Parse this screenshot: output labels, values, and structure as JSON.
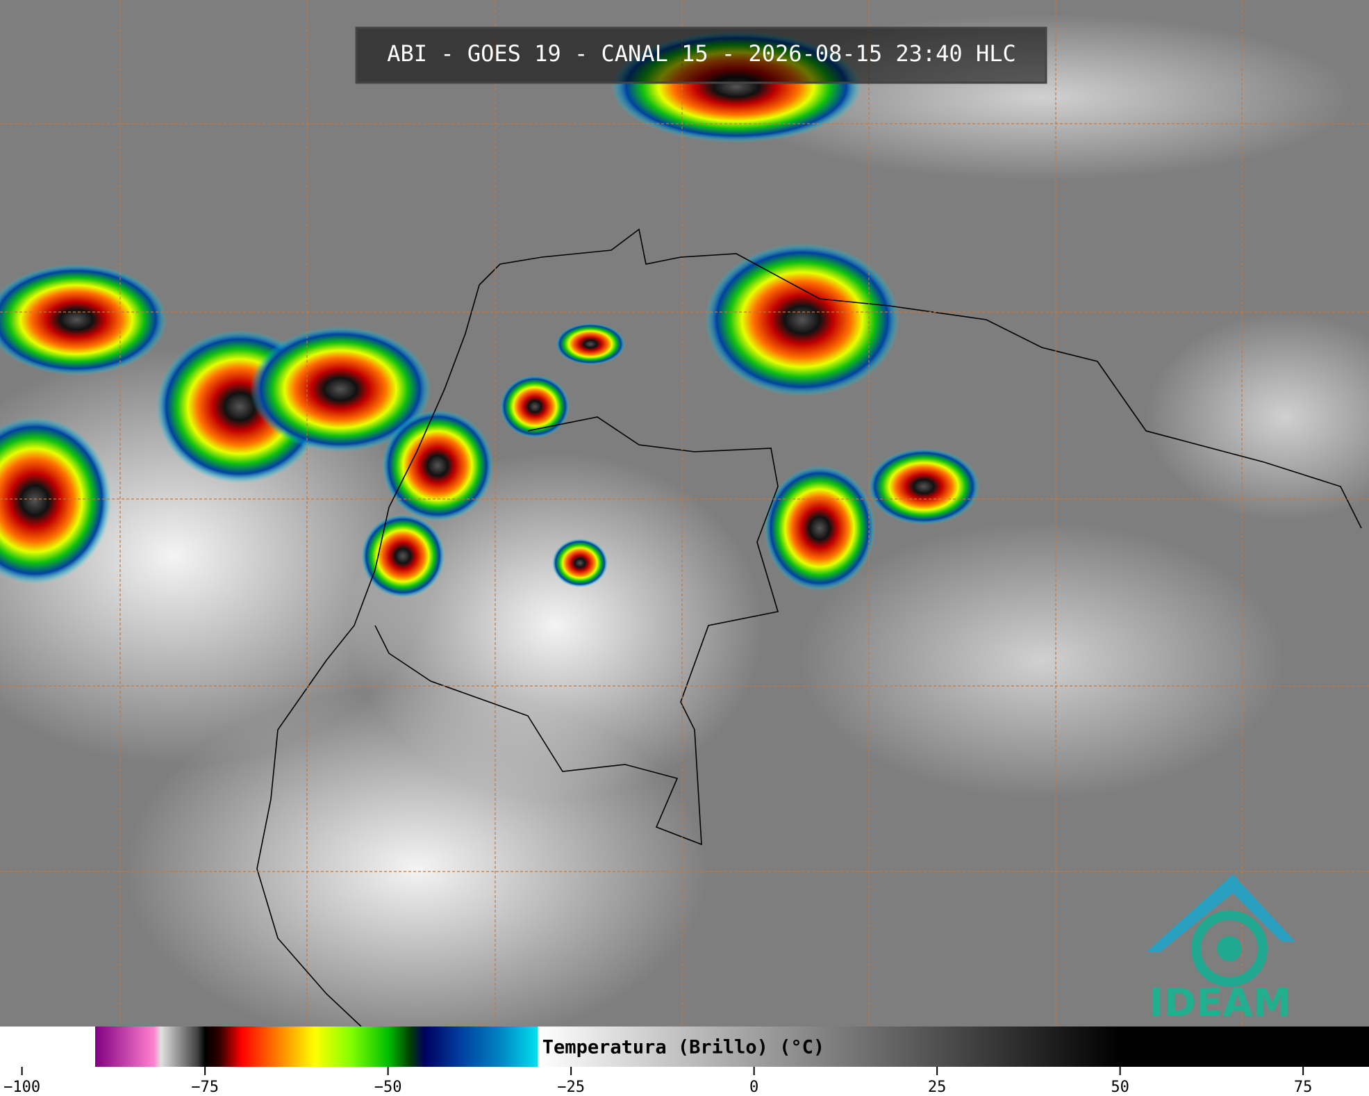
{
  "title": "ABI - GOES 19 - CANAL 15 - 2026-08-15 23:40 HLC",
  "logo": "IDEAM",
  "colorbar": {
    "label": "Temperatura (Brillo) (°C)",
    "xlim": [
      -103,
      84
    ],
    "xticks": [
      {
        "value": -100,
        "label": "−100"
      },
      {
        "value": -75,
        "label": "−75"
      },
      {
        "value": -50,
        "label": "−50"
      },
      {
        "value": -25,
        "label": "−25"
      },
      0,
      25,
      50,
      75
    ],
    "stops": [
      {
        "value": -103,
        "color": "#ffffff"
      },
      {
        "value": -90,
        "color": "#ffffff"
      },
      {
        "value": -90,
        "color": "#800080"
      },
      {
        "value": -82,
        "color": "#ff80d0"
      },
      {
        "value": -81,
        "color": "#e0e0e0"
      },
      {
        "value": -76,
        "color": "#404040"
      },
      {
        "value": -75,
        "color": "#000000"
      },
      {
        "value": -73,
        "color": "#300000"
      },
      {
        "value": -70,
        "color": "#ff0000"
      },
      {
        "value": -65,
        "color": "#ff8000"
      },
      {
        "value": -60,
        "color": "#ffff00"
      },
      {
        "value": -55,
        "color": "#80ff00"
      },
      {
        "value": -50,
        "color": "#00c000"
      },
      {
        "value": -47,
        "color": "#004000"
      },
      {
        "value": -45,
        "color": "#000060"
      },
      {
        "value": -40,
        "color": "#0040a0"
      },
      {
        "value": -35,
        "color": "#0080c0"
      },
      {
        "value": -29.5,
        "color": "#00e0f0"
      },
      {
        "value": -29.5,
        "color": "#ffffff"
      },
      {
        "value": 50,
        "color": "#000000"
      },
      {
        "value": 84,
        "color": "#000000"
      }
    ]
  }
}
